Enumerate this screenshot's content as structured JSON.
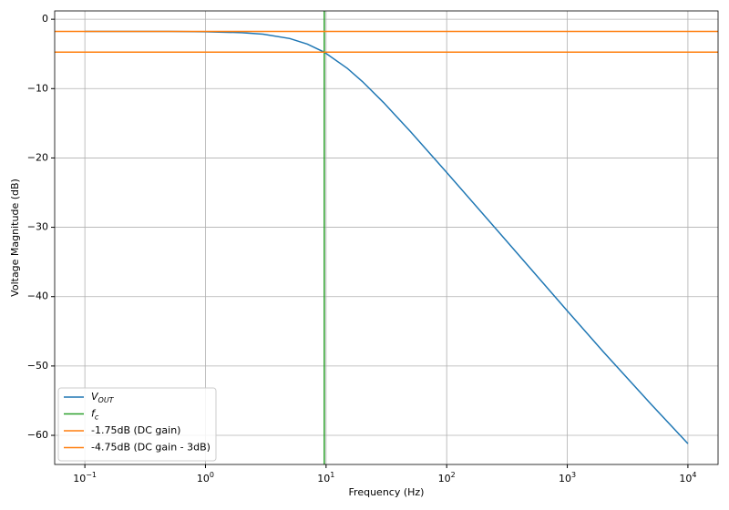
{
  "chart_data": {
    "type": "line",
    "xlabel": "Frequency (Hz)",
    "ylabel": "Voltage Magnitude (dB)",
    "xscale": "log",
    "grid": true,
    "legend": "lower left",
    "xlim": [
      0.0562,
      17783
    ],
    "ylim": [
      -64.2,
      1.2
    ],
    "xticks": [
      {
        "value": 0.1,
        "label": "10",
        "exp": "−1"
      },
      {
        "value": 1,
        "label": "10",
        "exp": "0"
      },
      {
        "value": 10,
        "label": "10",
        "exp": "1"
      },
      {
        "value": 100,
        "label": "10",
        "exp": "2"
      },
      {
        "value": 1000,
        "label": "10",
        "exp": "3"
      },
      {
        "value": 10000,
        "label": "10",
        "exp": "4"
      }
    ],
    "yticks": [
      0,
      {
        "value": -10,
        "label": "−10"
      },
      {
        "value": -20,
        "label": "−20"
      },
      {
        "value": -30,
        "label": "−30"
      },
      {
        "value": -40,
        "label": "−40"
      },
      {
        "value": -50,
        "label": "−50"
      },
      {
        "value": -60,
        "label": "−60"
      }
    ],
    "x": [
      0.1,
      0.2,
      0.5,
      1,
      2,
      3,
      5,
      7,
      9.66,
      15,
      20,
      30,
      50,
      100,
      200,
      500,
      1000,
      2000,
      5000,
      10000
    ],
    "series": [
      {
        "name": "V",
        "name_sub": "OUT",
        "color": "#1f77b4",
        "values": [
          -1.75,
          -1.75,
          -1.76,
          -1.8,
          -1.93,
          -2.15,
          -2.78,
          -3.58,
          -4.75,
          -7.08,
          -8.98,
          -12.02,
          -16.19,
          -22.1,
          -28.08,
          -36.03,
          -42.05,
          -48.0,
          -55.6,
          -61.2
        ]
      }
    ],
    "vlines": [
      {
        "name": "f",
        "name_sub": "c",
        "x": 9.66,
        "color": "#2ca02c"
      }
    ],
    "hlines": [
      {
        "name": "-1.75dB (DC gain)",
        "y": -1.75,
        "color": "#ff7f0e"
      },
      {
        "name": "-4.75dB (DC gain - 3dB)",
        "y": -4.75,
        "color": "#ff7f0e"
      }
    ]
  }
}
